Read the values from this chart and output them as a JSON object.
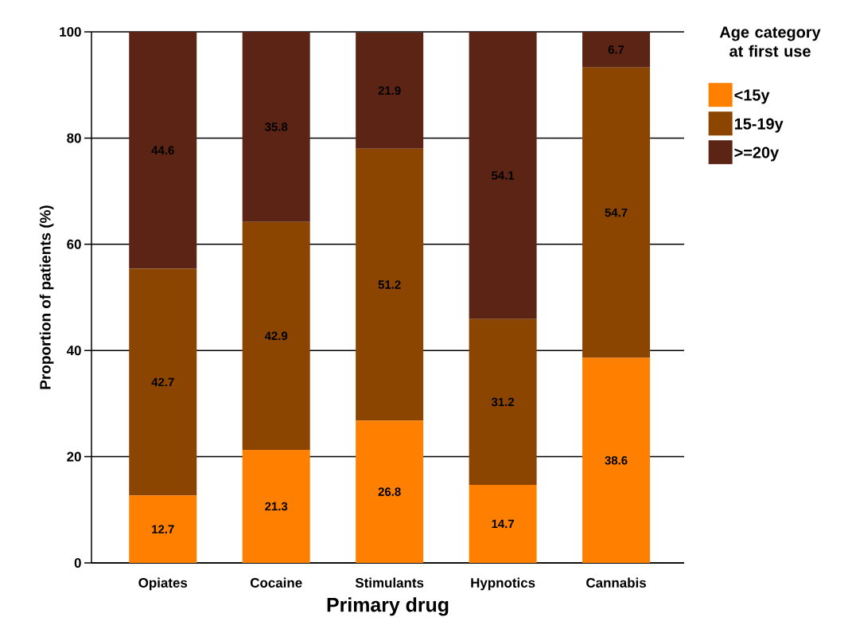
{
  "chart_data": {
    "type": "bar",
    "stacked": true,
    "xlabel": "Primary drug",
    "ylabel": "Proportion of patients (%)",
    "legend_title": "Age category at first use",
    "categories": [
      "Opiates",
      "Cocaine",
      "Stimulants",
      "Hypnotics",
      "Cannabis"
    ],
    "series": [
      {
        "name": "<15y",
        "color": "#ff8000",
        "values": [
          12.7,
          21.3,
          26.8,
          14.7,
          38.6
        ]
      },
      {
        "name": "15-19y",
        "color": "#8b4500",
        "values": [
          42.7,
          42.9,
          51.2,
          31.2,
          54.7
        ]
      },
      {
        "name": ">=20y",
        "color": "#5c2414",
        "values": [
          44.6,
          35.8,
          21.9,
          54.1,
          6.7
        ]
      }
    ],
    "ylim": [
      0,
      100
    ],
    "yticks": [
      0,
      20,
      40,
      60,
      80,
      100
    ],
    "grid": "y",
    "legend": "top right",
    "data_labels": true
  }
}
